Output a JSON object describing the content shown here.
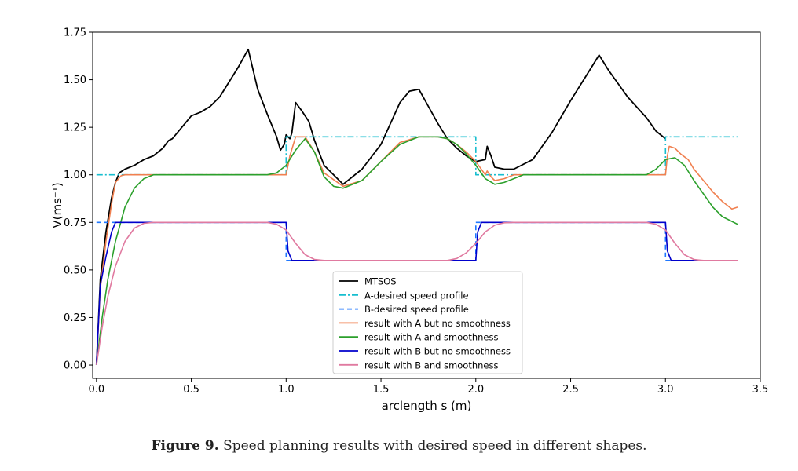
{
  "caption": {
    "label": "Figure 9.",
    "text": "Speed planning results with desired speed in different shapes."
  },
  "chart_data": {
    "type": "line",
    "xlabel": "arclength s (m)",
    "ylabel": "V(ms⁻¹)",
    "xlim": [
      -0.02,
      3.5
    ],
    "ylim": [
      -0.07,
      1.75
    ],
    "xticks": [
      "0.0",
      "0.5",
      "1.0",
      "1.5",
      "2.0",
      "2.5",
      "3.0",
      "3.5"
    ],
    "yticks": [
      "0.00",
      "0.25",
      "0.50",
      "0.75",
      "1.00",
      "1.25",
      "1.50",
      "1.75"
    ],
    "grid": false,
    "legend_position": "bottom-center",
    "series": [
      {
        "name": "MTSOS",
        "color": "#000000",
        "dash": "solid",
        "x": [
          0,
          0.02,
          0.05,
          0.08,
          0.1,
          0.12,
          0.15,
          0.2,
          0.25,
          0.3,
          0.35,
          0.38,
          0.4,
          0.45,
          0.5,
          0.55,
          0.6,
          0.65,
          0.7,
          0.75,
          0.8,
          0.85,
          0.9,
          0.95,
          0.97,
          0.99,
          1.0,
          1.02,
          1.03,
          1.05,
          1.08,
          1.12,
          1.15,
          1.2,
          1.3,
          1.4,
          1.5,
          1.6,
          1.65,
          1.7,
          1.75,
          1.8,
          1.85,
          1.9,
          1.95,
          2.0,
          2.05,
          2.06,
          2.08,
          2.1,
          2.15,
          2.2,
          2.3,
          2.4,
          2.5,
          2.6,
          2.65,
          2.7,
          2.8,
          2.9,
          2.95,
          3.0
        ],
        "y": [
          0,
          0.45,
          0.7,
          0.88,
          0.96,
          1.01,
          1.03,
          1.05,
          1.08,
          1.1,
          1.14,
          1.18,
          1.19,
          1.25,
          1.31,
          1.33,
          1.36,
          1.41,
          1.49,
          1.57,
          1.66,
          1.45,
          1.32,
          1.2,
          1.13,
          1.16,
          1.21,
          1.19,
          1.22,
          1.38,
          1.34,
          1.28,
          1.18,
          1.05,
          0.95,
          1.03,
          1.16,
          1.38,
          1.44,
          1.45,
          1.36,
          1.27,
          1.19,
          1.14,
          1.1,
          1.07,
          1.08,
          1.15,
          1.1,
          1.04,
          1.03,
          1.03,
          1.08,
          1.22,
          1.39,
          1.55,
          1.63,
          1.55,
          1.41,
          1.3,
          1.23,
          1.19
        ]
      },
      {
        "name": "A-desired speed profile",
        "color": "#17becf",
        "dash": "dashdot",
        "x": [
          0,
          1.0,
          1.0,
          2.0,
          2.0,
          3.0,
          3.0,
          3.38
        ],
        "y": [
          1.0,
          1.0,
          1.2,
          1.2,
          1.0,
          1.0,
          1.2,
          1.2
        ]
      },
      {
        "name": "B-desired speed profile",
        "color": "#1f77ff",
        "dash": "dashed",
        "x": [
          0,
          1.0,
          1.0,
          2.0,
          2.0,
          3.0,
          3.0,
          3.38
        ],
        "y": [
          0.75,
          0.75,
          0.55,
          0.55,
          0.75,
          0.75,
          0.55,
          0.55
        ]
      },
      {
        "name": "result with A but no smoothness",
        "color": "#f08050",
        "dash": "solid",
        "x": [
          0,
          0.02,
          0.05,
          0.08,
          0.1,
          0.13,
          0.15,
          0.2,
          1.0,
          1.02,
          1.05,
          1.1,
          1.15,
          1.2,
          1.3,
          1.4,
          1.5,
          1.6,
          1.7,
          1.8,
          1.85,
          1.9,
          1.95,
          2.0,
          2.05,
          2.06,
          2.08,
          2.1,
          2.15,
          2.2,
          2.3,
          3.0,
          3.01,
          3.02,
          3.05,
          3.08,
          3.12,
          3.15,
          3.2,
          3.25,
          3.3,
          3.35,
          3.38
        ],
        "y": [
          0,
          0.4,
          0.65,
          0.85,
          0.96,
          0.995,
          1.0,
          1.0,
          1.0,
          1.1,
          1.2,
          1.2,
          1.12,
          1.01,
          0.94,
          0.97,
          1.07,
          1.17,
          1.2,
          1.2,
          1.19,
          1.16,
          1.12,
          1.07,
          1.0,
          1.02,
          0.99,
          0.97,
          0.98,
          1.0,
          1.0,
          1.0,
          1.1,
          1.15,
          1.14,
          1.11,
          1.08,
          1.03,
          0.97,
          0.91,
          0.86,
          0.82,
          0.83
        ]
      },
      {
        "name": "result with A and smoothness",
        "color": "#2ca02c",
        "dash": "solid",
        "x": [
          0,
          0.03,
          0.06,
          0.1,
          0.15,
          0.2,
          0.25,
          0.3,
          0.35,
          0.5,
          0.9,
          0.95,
          1.0,
          1.05,
          1.1,
          1.15,
          1.2,
          1.25,
          1.3,
          1.4,
          1.5,
          1.6,
          1.7,
          1.8,
          1.85,
          1.9,
          1.95,
          2.0,
          2.05,
          2.1,
          2.15,
          2.2,
          2.25,
          2.3,
          2.5,
          2.9,
          2.95,
          3.0,
          3.05,
          3.1,
          3.15,
          3.2,
          3.25,
          3.3,
          3.38
        ],
        "y": [
          0,
          0.25,
          0.45,
          0.65,
          0.83,
          0.93,
          0.98,
          1.0,
          1.0,
          1.0,
          1.0,
          1.01,
          1.05,
          1.13,
          1.19,
          1.12,
          0.99,
          0.94,
          0.93,
          0.97,
          1.07,
          1.16,
          1.2,
          1.2,
          1.19,
          1.16,
          1.11,
          1.05,
          0.98,
          0.95,
          0.96,
          0.98,
          1.0,
          1.0,
          1.0,
          1.0,
          1.03,
          1.08,
          1.09,
          1.05,
          0.97,
          0.9,
          0.83,
          0.78,
          0.74
        ]
      },
      {
        "name": "result with B but no smoothness",
        "color": "#0000cc",
        "dash": "solid",
        "x": [
          0,
          0.02,
          0.05,
          0.08,
          0.1,
          0.12,
          1.0,
          1.01,
          1.03,
          2.0,
          2.01,
          2.03,
          3.0,
          3.01,
          3.03,
          3.38
        ],
        "y": [
          0,
          0.42,
          0.57,
          0.7,
          0.75,
          0.75,
          0.75,
          0.6,
          0.55,
          0.55,
          0.7,
          0.75,
          0.75,
          0.6,
          0.55,
          0.55
        ]
      },
      {
        "name": "result with B and smoothness",
        "color": "#e07aa0",
        "dash": "solid",
        "x": [
          0,
          0.03,
          0.06,
          0.1,
          0.15,
          0.2,
          0.25,
          0.3,
          0.9,
          0.95,
          1.0,
          1.05,
          1.1,
          1.15,
          1.2,
          1.85,
          1.9,
          1.95,
          2.0,
          2.05,
          2.1,
          2.15,
          2.2,
          2.9,
          2.95,
          3.0,
          3.05,
          3.1,
          3.15,
          3.2,
          3.38
        ],
        "y": [
          0,
          0.2,
          0.36,
          0.52,
          0.65,
          0.72,
          0.745,
          0.75,
          0.75,
          0.74,
          0.71,
          0.64,
          0.58,
          0.555,
          0.55,
          0.55,
          0.56,
          0.59,
          0.64,
          0.7,
          0.735,
          0.748,
          0.75,
          0.75,
          0.74,
          0.71,
          0.64,
          0.58,
          0.555,
          0.55,
          0.55
        ]
      }
    ]
  }
}
